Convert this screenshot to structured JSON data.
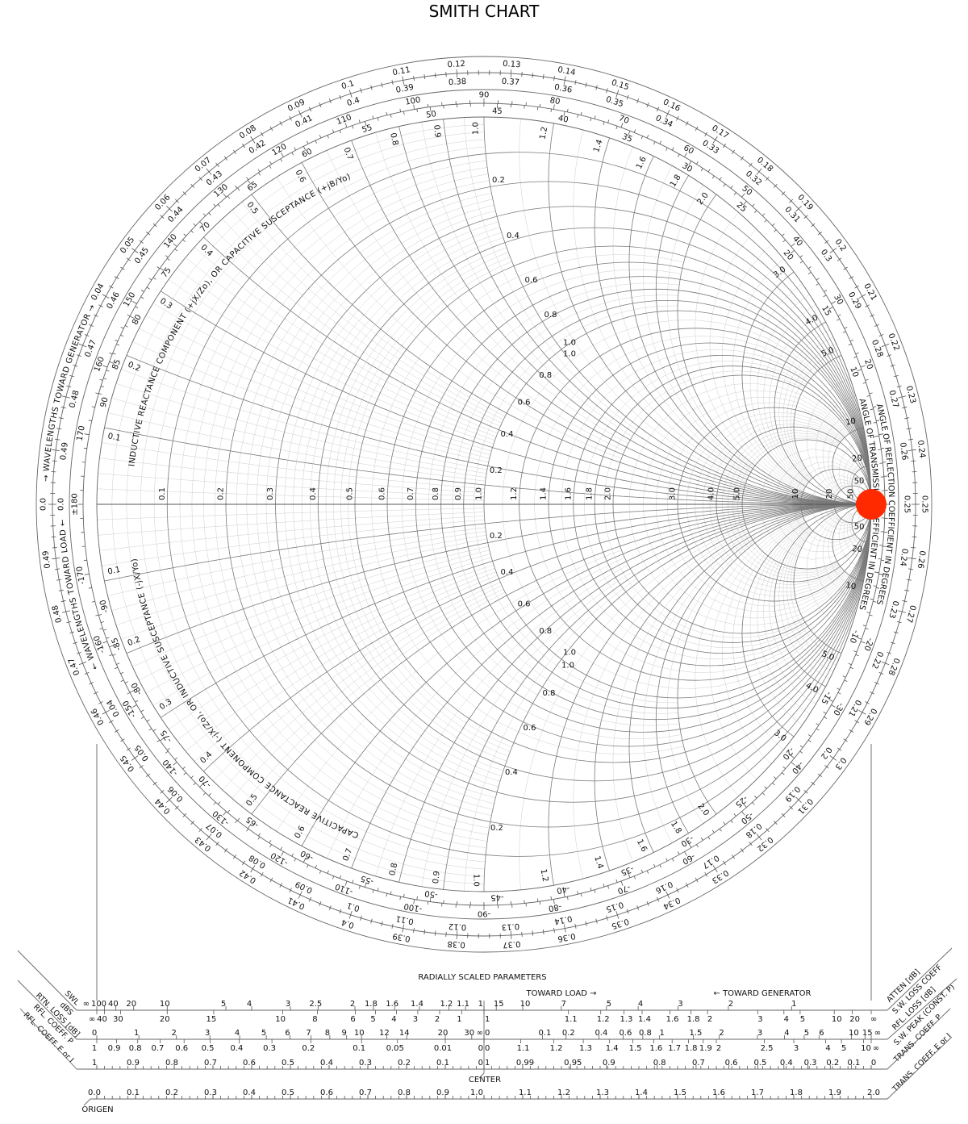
{
  "chart_data": {
    "type": "scatter",
    "title": "SMITH CHART",
    "grid": true,
    "series": [
      {
        "points": [
          {
            "gamma_re": 1.0,
            "gamma_im": 0.0
          }
        ],
        "color": "#ff2a00"
      }
    ],
    "resistance_labels": [
      "0.1",
      "0.2",
      "0.3",
      "0.4",
      "0.5",
      "0.6",
      "0.7",
      "0.8",
      "0.9",
      "1.0",
      "1.2",
      "1.4",
      "1.6",
      "1.8",
      "2.0",
      "3.0",
      "4.0",
      "5.0",
      "10",
      "20",
      "50"
    ],
    "reactance_rim_labels": [
      "0.1",
      "0.2",
      "0.3",
      "0.4",
      "0.5",
      "0.6",
      "0.7",
      "0.8",
      "0.9",
      "1.0",
      "1.2",
      "1.4",
      "1.6",
      "1.8",
      "2.0",
      "3.0",
      "4.0",
      "5.0",
      "10",
      "20",
      "50"
    ],
    "resistance_labels_on_unit_reactance": [
      "0.2",
      "0.4",
      "0.6",
      "0.8",
      "1.0"
    ],
    "reactance_labels_on_unit_resistance": [
      "0.2",
      "0.4",
      "0.6",
      "0.8",
      "1.0"
    ],
    "reflection_angle_labels": [
      "20",
      "30",
      "40",
      "50",
      "60",
      "70",
      "80",
      "90",
      "100",
      "110",
      "120",
      "130",
      "140",
      "150",
      "160",
      "170",
      "±180",
      "-170",
      "-160",
      "-150",
      "-140",
      "-130",
      "-120",
      "-110",
      "-100",
      "-90",
      "-80",
      "-70",
      "-60",
      "-50",
      "-40",
      "-30",
      "-20"
    ],
    "transmission_angle_labels": [
      "10",
      "15",
      "20",
      "25",
      "30",
      "35",
      "40",
      "45",
      "50",
      "55",
      "60",
      "65",
      "70",
      "75",
      "80",
      "85",
      "90",
      "-90",
      "-85",
      "-80",
      "-75",
      "-70",
      "-65",
      "-60",
      "-55",
      "-50",
      "-45",
      "-40",
      "-35",
      "-30",
      "-25",
      "-20",
      "-15",
      "-10"
    ],
    "wavelength_generator_labels": [
      "0.0",
      "0.04",
      "0.05",
      "0.06",
      "0.07",
      "0.08",
      "0.09",
      "0.1",
      "0.11",
      "0.12",
      "0.13",
      "0.14",
      "0.15",
      "0.16",
      "0.17",
      "0.18",
      "0.19",
      "0.2",
      "0.21",
      "0.22",
      "0.23",
      "0.24",
      "0.25",
      "0.26",
      "0.27",
      "0.28",
      "0.29",
      "0.3",
      "0.31",
      "0.32",
      "0.33",
      "0.34",
      "0.35",
      "0.36",
      "0.37",
      "0.38",
      "0.39",
      "0.4",
      "0.41",
      "0.42",
      "0.43",
      "0.44",
      "0.45",
      "0.46",
      "0.47",
      "0.48",
      "0.49"
    ],
    "wavelength_load_labels": [
      "0.0",
      "0.04",
      "0.05",
      "0.06",
      "0.07",
      "0.08",
      "0.09",
      "0.1",
      "0.11",
      "0.12",
      "0.13",
      "0.14",
      "0.15",
      "0.16",
      "0.17",
      "0.18",
      "0.19",
      "0.2",
      "0.21",
      "0.22",
      "0.23",
      "0.24",
      "0.25",
      "0.26",
      "0.27",
      "0.28",
      "0.29",
      "0.3",
      "0.31",
      "0.32",
      "0.33",
      "0.34",
      "0.35",
      "0.36",
      "0.37",
      "0.38",
      "0.39",
      "0.4",
      "0.41",
      "0.42",
      "0.43",
      "0.44",
      "0.45",
      "0.46",
      "0.47",
      "0.48",
      "0.49"
    ],
    "ring_titles": {
      "wavelengths_toward_generator": "→ WAVELENGTHS TOWARD GENERATOR →",
      "wavelengths_toward_load": "← WAVELENGTHS TOWARD LOAD ←",
      "inductive": "INDUCTIVE REACTANCE COMPONENT (+jX/Zo), OR CAPACITIVE SUSCEPTANCE (+jB/Yo)",
      "capacitive": "CAPACITIVE REACTANCE COMPONENT (-jX/Zo), OR INDUCTIVE SUSCEPTANCE (-jX/Yo)",
      "reflection_angle": "ANGLE OF REFLECTION COEFFICIENT IN DEGREES",
      "transmission_angle": "ANGLE OF TRANSMISSION COEFFICIENT IN DEGREES"
    }
  },
  "radial_scales": {
    "heading": "RADIALLY SCALED PARAMETERS",
    "toward_load": "TOWARD LOAD →",
    "toward_generator": "← TOWARD GENERATOR",
    "center": "CENTER",
    "origin": "ORIGEN",
    "left": {
      "swl": {
        "name": "SWL",
        "values": [
          "∞",
          "100",
          "40",
          "20",
          "10",
          "5",
          "4",
          "3",
          "2.5",
          "2",
          "1.8",
          "1.6",
          "1.4",
          "1.2",
          "1.1",
          "1"
        ]
      },
      "dbs": {
        "name": "dBS",
        "values": [
          "∞",
          "40",
          "30",
          "20",
          "15",
          "10",
          "8",
          "6",
          "5",
          "4",
          "3",
          "2",
          "1"
        ]
      },
      "rtn_loss": {
        "name": "RTN. LOSS [dB]",
        "values": [
          "0",
          "1",
          "2",
          "3",
          "4",
          "5",
          "6",
          "7",
          "8",
          "9",
          "10",
          "12",
          "14",
          "20",
          "30",
          "∞"
        ]
      },
      "rfl_coeff_p": {
        "name": "RFL. COEFF. P",
        "values": [
          "1",
          "0.9",
          "0.8",
          "0.7",
          "0.6",
          "0.5",
          "0.4",
          "0.3",
          "0.2",
          "0.1",
          "0.05",
          "0.01",
          "0"
        ]
      },
      "rfl_coeff_e": {
        "name": "RFL. COEFF. E or I",
        "values": [
          "1",
          "0.9",
          "0.8",
          "0.7",
          "0.6",
          "0.5",
          "0.4",
          "0.3",
          "0.2",
          "0.1",
          "0"
        ]
      },
      "origin_scale": {
        "values": [
          "0.0",
          "0.1",
          "0.2",
          "0.3",
          "0.4",
          "0.5",
          "0.6",
          "0.7",
          "0.8",
          "0.9",
          "1.0"
        ]
      }
    },
    "right": {
      "atten": {
        "name": "ATTEN [dB]",
        "values": [
          "15",
          "10",
          "7",
          "5",
          "4",
          "3",
          "2",
          "1"
        ]
      },
      "sw_loss": {
        "name": "S.W. LOSS COEFF",
        "values": [
          "1",
          "1.1",
          "1.2",
          "1.3",
          "1.4",
          "1.6",
          "1.8",
          "2",
          "3",
          "4",
          "5",
          "10",
          "20",
          "∞"
        ]
      },
      "rfl_loss": {
        "name": "RFL. LOSS [dB]",
        "values": [
          "0",
          "0.1",
          "0.2",
          "0.4",
          "0.6",
          "0.8",
          "1",
          "1.5",
          "2",
          "3",
          "4",
          "5",
          "6",
          "10",
          "15",
          "∞"
        ]
      },
      "sw_peak": {
        "name": "S.W. PEAK (CONST. P)",
        "values": [
          "0",
          "1.1",
          "1.2",
          "1.3",
          "1.4",
          "1.5",
          "1.6",
          "1.7",
          "1.8",
          "1.9",
          "2",
          "2.5",
          "3",
          "4",
          "5",
          "10",
          "∞"
        ]
      },
      "trans_p": {
        "name": "TRANS. COEFF. P",
        "values": [
          "1",
          "0.99",
          "0.95",
          "0.9",
          "0.8",
          "0.7",
          "0.6",
          "0.5",
          "0.4",
          "0.3",
          "0.2",
          "0.1",
          "0"
        ]
      },
      "trans_e": {
        "name": "TRANS. COEFF. E or I",
        "values": [
          "1.1",
          "1.2",
          "1.3",
          "1.4",
          "1.5",
          "1.6",
          "1.7",
          "1.8",
          "1.9",
          "2.0"
        ]
      }
    }
  }
}
